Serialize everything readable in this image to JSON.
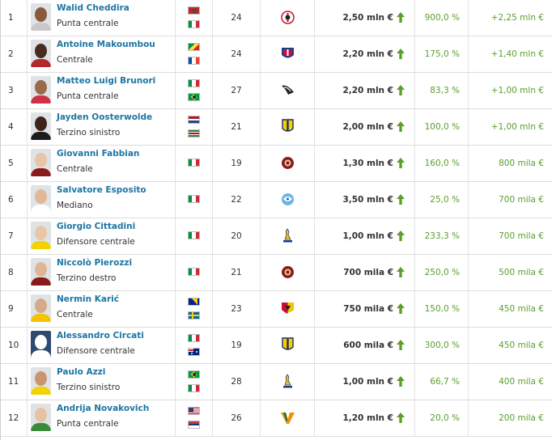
{
  "colors": {
    "link": "#1d75a3",
    "positive": "#5a9e2d",
    "arrow": "#5a9e2d"
  },
  "rows": [
    {
      "rank": "1",
      "name": "Walid Cheddira",
      "position": "Punta centrale",
      "age": "24",
      "value": "2,50 mln €",
      "pct": "900,0 %",
      "inc": "+2,25 mln €",
      "skin": "#8a5a3c",
      "shirt": "#c9c9c9",
      "flags": [
        "morocco",
        "italy"
      ],
      "club": "bari"
    },
    {
      "rank": "2",
      "name": "Antoine Makoumbou",
      "position": "Centrale",
      "age": "24",
      "value": "2,20 mln €",
      "pct": "175,0 %",
      "inc": "+1,40 mln €",
      "skin": "#4a2c1e",
      "shirt": "#b3282d",
      "flags": [
        "congo",
        "france"
      ],
      "club": "cagliari"
    },
    {
      "rank": "3",
      "name": "Matteo Luigi Brunori",
      "position": "Punta centrale",
      "age": "27",
      "value": "2,20 mln €",
      "pct": "83,3 %",
      "inc": "+1,00 mln €",
      "skin": "#9a6a4a",
      "shirt": "#cc3344",
      "flags": [
        "italy",
        "brazil"
      ],
      "club": "palermo"
    },
    {
      "rank": "4",
      "name": "Jayden Oosterwolde",
      "position": "Terzino sinistro",
      "age": "21",
      "value": "2,00 mln €",
      "pct": "100,0 %",
      "inc": "+1,00 mln €",
      "skin": "#3e2418",
      "shirt": "#1c1c1c",
      "flags": [
        "netherlands",
        "suriname"
      ],
      "club": "parma"
    },
    {
      "rank": "5",
      "name": "Giovanni Fabbian",
      "position": "Centrale",
      "age": "19",
      "value": "1,30 mln €",
      "pct": "160,0 %",
      "inc": "800 mila €",
      "skin": "#e8c4a8",
      "shirt": "#8a1a1a",
      "flags": [
        "italy"
      ],
      "club": "reggina"
    },
    {
      "rank": "6",
      "name": "Salvatore Esposito",
      "position": "Mediano",
      "age": "22",
      "value": "3,50 mln €",
      "pct": "25,0 %",
      "inc": "700 mila €",
      "skin": "#e2b896",
      "shirt": "#ffffff",
      "flags": [
        "italy"
      ],
      "club": "spal"
    },
    {
      "rank": "7",
      "name": "Giorgio Cittadini",
      "position": "Difensore centrale",
      "age": "20",
      "value": "1,00 mln €",
      "pct": "233,3 %",
      "inc": "700 mila €",
      "skin": "#e9c6a6",
      "shirt": "#f2d200",
      "flags": [
        "italy"
      ],
      "club": "modena"
    },
    {
      "rank": "8",
      "name": "Niccolò Pierozzi",
      "position": "Terzino destro",
      "age": "21",
      "value": "700 mila €",
      "pct": "250,0 %",
      "inc": "500 mila €",
      "skin": "#e0b594",
      "shirt": "#8a1a1a",
      "flags": [
        "italy"
      ],
      "club": "reggina"
    },
    {
      "rank": "9",
      "name": "Nermin Karić",
      "position": "Centrale",
      "age": "23",
      "value": "750 mila €",
      "pct": "150,0 %",
      "inc": "450 mila €",
      "skin": "#d6a987",
      "shirt": "#f4c400",
      "flags": [
        "bosnia",
        "sweden"
      ],
      "club": "benevento"
    },
    {
      "rank": "10",
      "name": "Alessandro Circati",
      "position": "Difensore centrale",
      "age": "19",
      "value": "600 mila €",
      "pct": "300,0 %",
      "inc": "450 mila €",
      "skin": "",
      "shirt": "",
      "silhouette": true,
      "flags": [
        "italy",
        "australia"
      ],
      "club": "parma"
    },
    {
      "rank": "11",
      "name": "Paulo Azzi",
      "position": "Terzino sinistro",
      "age": "28",
      "value": "1,00 mln €",
      "pct": "66,7 %",
      "inc": "400 mila €",
      "skin": "#c9956f",
      "shirt": "#f2d200",
      "flags": [
        "brazil",
        "italy"
      ],
      "club": "modena"
    },
    {
      "rank": "12",
      "name": "Andrija Novakovich",
      "position": "Punta centrale",
      "age": "26",
      "value": "1,20 mln €",
      "pct": "20,0 %",
      "inc": "200 mila €",
      "skin": "#e6c2a3",
      "shirt": "#3a8a3a",
      "flags": [
        "usa",
        "serbia"
      ],
      "club": "venezia"
    }
  ]
}
